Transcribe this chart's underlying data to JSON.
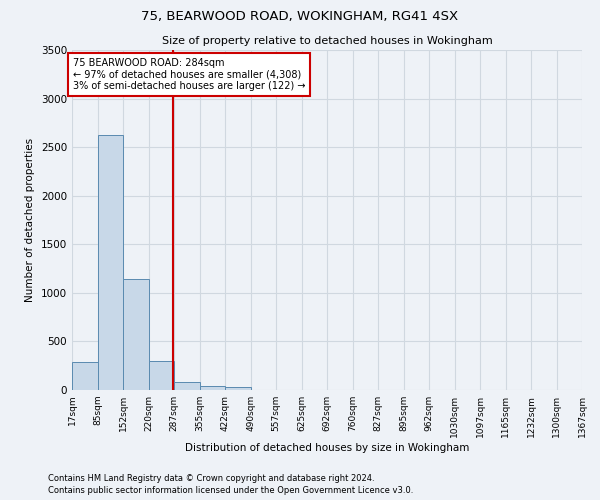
{
  "title1": "75, BEARWOOD ROAD, WOKINGHAM, RG41 4SX",
  "title2": "Size of property relative to detached houses in Wokingham",
  "xlabel": "Distribution of detached houses by size in Wokingham",
  "ylabel": "Number of detached properties",
  "footnote1": "Contains HM Land Registry data © Crown copyright and database right 2024.",
  "footnote2": "Contains public sector information licensed under the Open Government Licence v3.0.",
  "annotation_line1": "75 BEARWOOD ROAD: 284sqm",
  "annotation_line2": "← 97% of detached houses are smaller (4,308)",
  "annotation_line3": "3% of semi-detached houses are larger (122) →",
  "property_size": 284,
  "bin_edges": [
    17,
    85,
    152,
    220,
    287,
    355,
    422,
    490,
    557,
    625,
    692,
    760,
    827,
    895,
    962,
    1030,
    1097,
    1165,
    1232,
    1300,
    1367
  ],
  "bin_counts": [
    290,
    2630,
    1140,
    300,
    85,
    40,
    30,
    0,
    0,
    0,
    0,
    0,
    0,
    0,
    0,
    0,
    0,
    0,
    0,
    0
  ],
  "bar_color": "#c8d8e8",
  "bar_edge_color": "#5a8ab0",
  "marker_line_color": "#cc0000",
  "grid_color": "#d0d8e0",
  "background_color": "#eef2f7",
  "annotation_box_color": "#ffffff",
  "annotation_border_color": "#cc0000",
  "ylim": [
    0,
    3500
  ],
  "yticks": [
    0,
    500,
    1000,
    1500,
    2000,
    2500,
    3000,
    3500
  ],
  "title1_fontsize": 9.5,
  "title2_fontsize": 8,
  "ylabel_fontsize": 7.5,
  "xlabel_fontsize": 7.5,
  "ytick_fontsize": 7.5,
  "xtick_fontsize": 6.5,
  "annot_fontsize": 7,
  "footnote_fontsize": 6
}
